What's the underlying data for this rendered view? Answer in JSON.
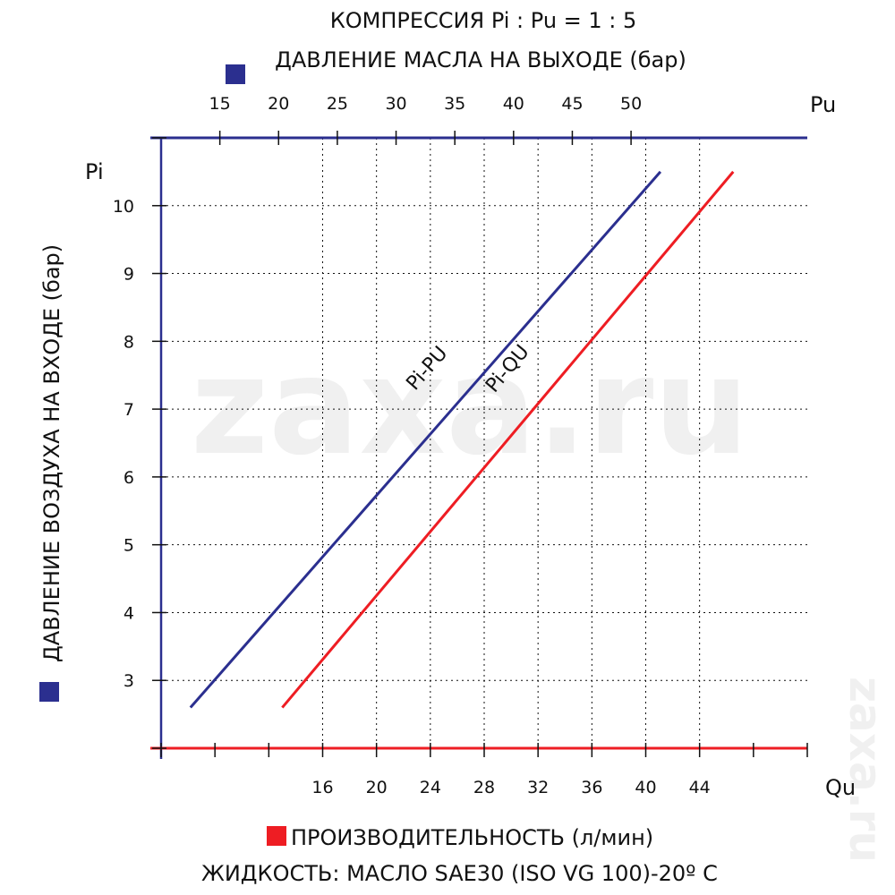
{
  "titles": {
    "line1": "КОМПРЕССИЯ Pi : Pu = 1 : 5",
    "line2": "ДАВЛЕНИЕ МАСЛА НА ВЫХОДЕ (бар)",
    "left_axis": "ДАВЛЕНИЕ ВОЗДУХА НА ВХОДЕ (бар)",
    "bottom1": "ПРОИЗВОДИТЕЛЬНОСТЬ (л/мин)",
    "bottom2": "ЖИДКОСТЬ:  МАСЛО SAE30 (ISO VG 100)-20º C"
  },
  "watermark": {
    "main": "zaxa.ru",
    "side": "zaxa.ru"
  },
  "colors": {
    "blue": "#2b2f8f",
    "red": "#ee1d23",
    "grid": "#111111"
  },
  "chart_data": {
    "type": "line",
    "axes": {
      "left": {
        "symbol": "Pi",
        "ticks": [
          3,
          4,
          5,
          6,
          7,
          8,
          9,
          10
        ],
        "range": [
          2,
          11
        ]
      },
      "top": {
        "symbol": "Pu",
        "ticks": [
          15,
          20,
          25,
          30,
          35,
          40,
          45,
          50
        ],
        "range": [
          10,
          65
        ]
      },
      "bottom": {
        "symbol": "Qu",
        "ticks": [
          16,
          20,
          24,
          28,
          32,
          36,
          40,
          44
        ],
        "range": [
          4,
          52
        ]
      }
    },
    "grid": true,
    "series": [
      {
        "name": "Pi-PU",
        "axis": "top",
        "color": "#2b2f8f",
        "points": [
          [
            12.5,
            2.6
          ],
          [
            52.5,
            10.5
          ]
        ]
      },
      {
        "name": "Pi-QU",
        "axis": "bottom",
        "color": "#ee1d23",
        "points": [
          [
            13,
            2.6
          ],
          [
            46.5,
            10.5
          ]
        ]
      }
    ]
  }
}
